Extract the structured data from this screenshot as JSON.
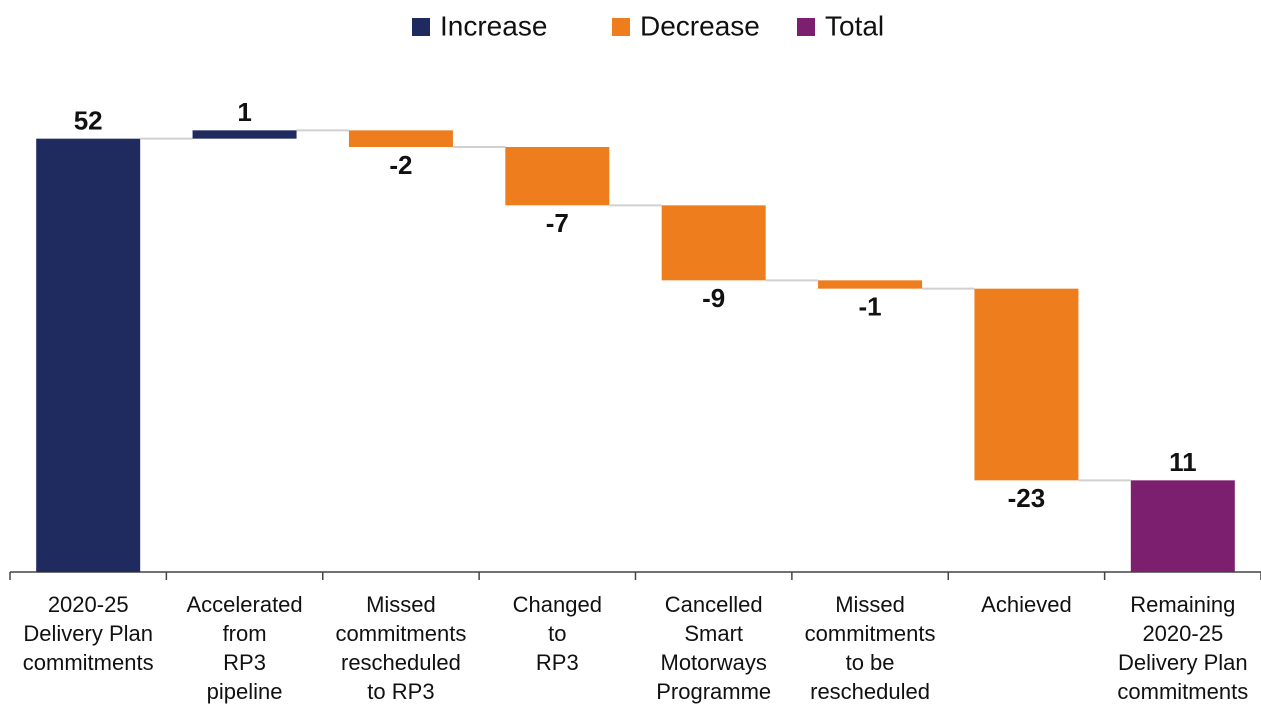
{
  "chart_data": {
    "type": "waterfall",
    "categories": [
      "2020-25\nDelivery Plan\ncommitments",
      "Accelerated\nfrom\nRP3\npipeline",
      "Missed\ncommitments\nrescheduled\nto RP3",
      "Changed\nto\nRP3",
      "Cancelled\nSmart\nMotorways\nProgramme",
      "Missed\ncommitments\nto be\nrescheduled",
      "Achieved",
      "Remaining\n2020-25\nDelivery Plan\ncommitments"
    ],
    "series": [
      {
        "name": "Increase",
        "color": "#1f2a5e",
        "values": [
          52,
          1,
          null,
          null,
          null,
          null,
          null,
          null
        ]
      },
      {
        "name": "Decrease",
        "color": "#ee7d1e",
        "values": [
          null,
          null,
          -2,
          -7,
          -9,
          -1,
          -23,
          null
        ]
      },
      {
        "name": "Total",
        "color": "#7c1f6f",
        "values": [
          null,
          null,
          null,
          null,
          null,
          null,
          null,
          11
        ]
      }
    ],
    "ylim": [
      0,
      60
    ]
  }
}
